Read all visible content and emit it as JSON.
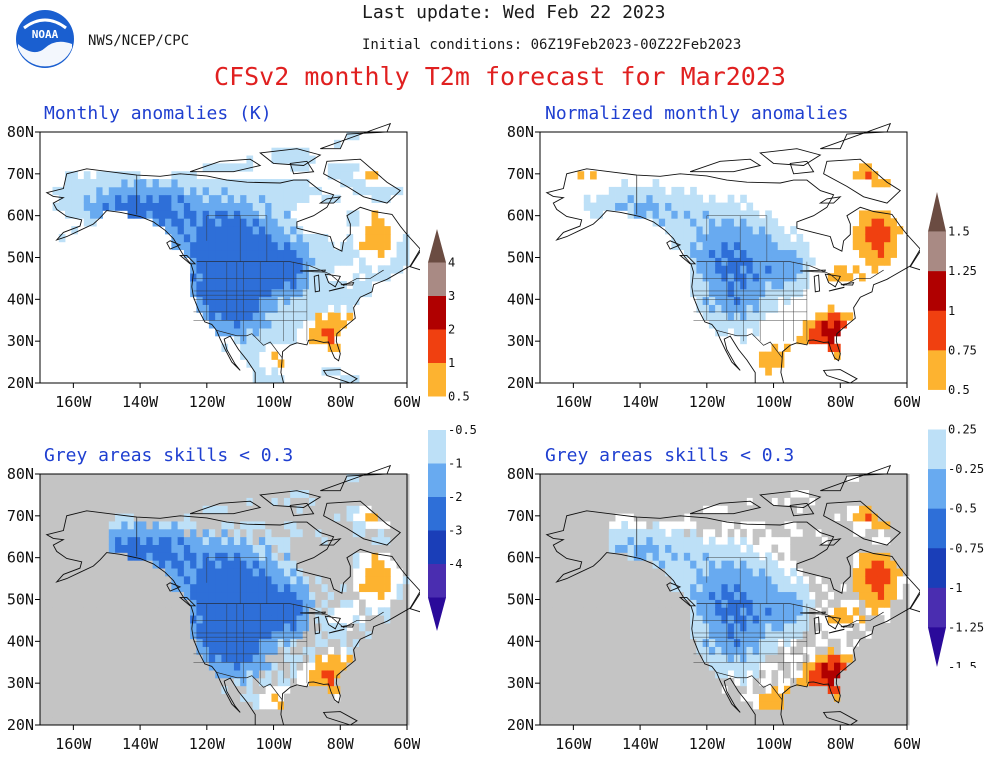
{
  "header": {
    "org": "NWS/NCEP/CPC",
    "last_update": "Last update: Wed Feb 22 2023",
    "initial_conditions": "Initial conditions: 06Z19Feb2023-00Z22Feb2023",
    "title": "CFSv2 monthly T2m forecast for Mar2023",
    "logo_text": "NOAA"
  },
  "colors": {
    "title": "#e02020",
    "panel_title": "#1f3fd0",
    "skill_mask_grey": "#c4c4c4"
  },
  "chart_data": [
    {
      "type": "heatmap",
      "title": "Monthly anomalies (K)",
      "x_ticks": [
        "160W",
        "140W",
        "120W",
        "100W",
        "80W",
        "60W"
      ],
      "y_ticks": [
        "80N",
        "70N",
        "60N",
        "50N",
        "40N",
        "30N",
        "20N"
      ],
      "xlim": [
        -170,
        -60
      ],
      "ylim": [
        20,
        80
      ],
      "skill_mask": false,
      "colorbar": "anom"
    },
    {
      "type": "heatmap",
      "title": "Normalized monthly anomalies",
      "x_ticks": [
        "160W",
        "140W",
        "120W",
        "100W",
        "80W",
        "60W"
      ],
      "y_ticks": [
        "80N",
        "70N",
        "60N",
        "50N",
        "40N",
        "30N",
        "20N"
      ],
      "xlim": [
        -170,
        -60
      ],
      "ylim": [
        20,
        80
      ],
      "skill_mask": false,
      "colorbar": "norm"
    },
    {
      "type": "heatmap",
      "title": "Grey areas skills < 0.3",
      "x_ticks": [
        "160W",
        "140W",
        "120W",
        "100W",
        "80W",
        "60W"
      ],
      "y_ticks": [
        "80N",
        "70N",
        "60N",
        "50N",
        "40N",
        "30N",
        "20N"
      ],
      "xlim": [
        -170,
        -60
      ],
      "ylim": [
        20,
        80
      ],
      "skill_mask": true,
      "colorbar": "anom"
    },
    {
      "type": "heatmap",
      "title": "Grey areas skills < 0.3",
      "x_ticks": [
        "160W",
        "140W",
        "120W",
        "100W",
        "80W",
        "60W"
      ],
      "y_ticks": [
        "80N",
        "70N",
        "60N",
        "50N",
        "40N",
        "30N",
        "20N"
      ],
      "xlim": [
        -170,
        -60
      ],
      "ylim": [
        20,
        80
      ],
      "skill_mask": true,
      "colorbar": "norm"
    }
  ],
  "colorbars": {
    "anom": {
      "labels": [
        "4",
        "3",
        "2",
        "1",
        "0.5",
        "-0.5",
        "-1",
        "-2",
        "-3",
        "-4"
      ],
      "colors": [
        "#6b4c42",
        "#a98a84",
        "#b00000",
        "#f04010",
        "#fdb330",
        "#ffffff",
        "#bde0f7",
        "#68aaf0",
        "#2e6fd8",
        "#1a3eb8",
        "#4a2db0",
        "#2a0a9a"
      ]
    },
    "norm": {
      "labels": [
        "1.5",
        "1.25",
        "1",
        "0.75",
        "0.5",
        "0.25",
        "-0.25",
        "-0.5",
        "-0.75",
        "-1",
        "-1.25",
        "-1.5"
      ],
      "colors": [
        "#6b4c42",
        "#a98a84",
        "#b00000",
        "#f04010",
        "#fdb330",
        "#ffffff",
        "#bde0f7",
        "#68aaf0",
        "#2e6fd8",
        "#1a3eb8",
        "#4a2db0",
        "#2a0a9a"
      ]
    }
  }
}
